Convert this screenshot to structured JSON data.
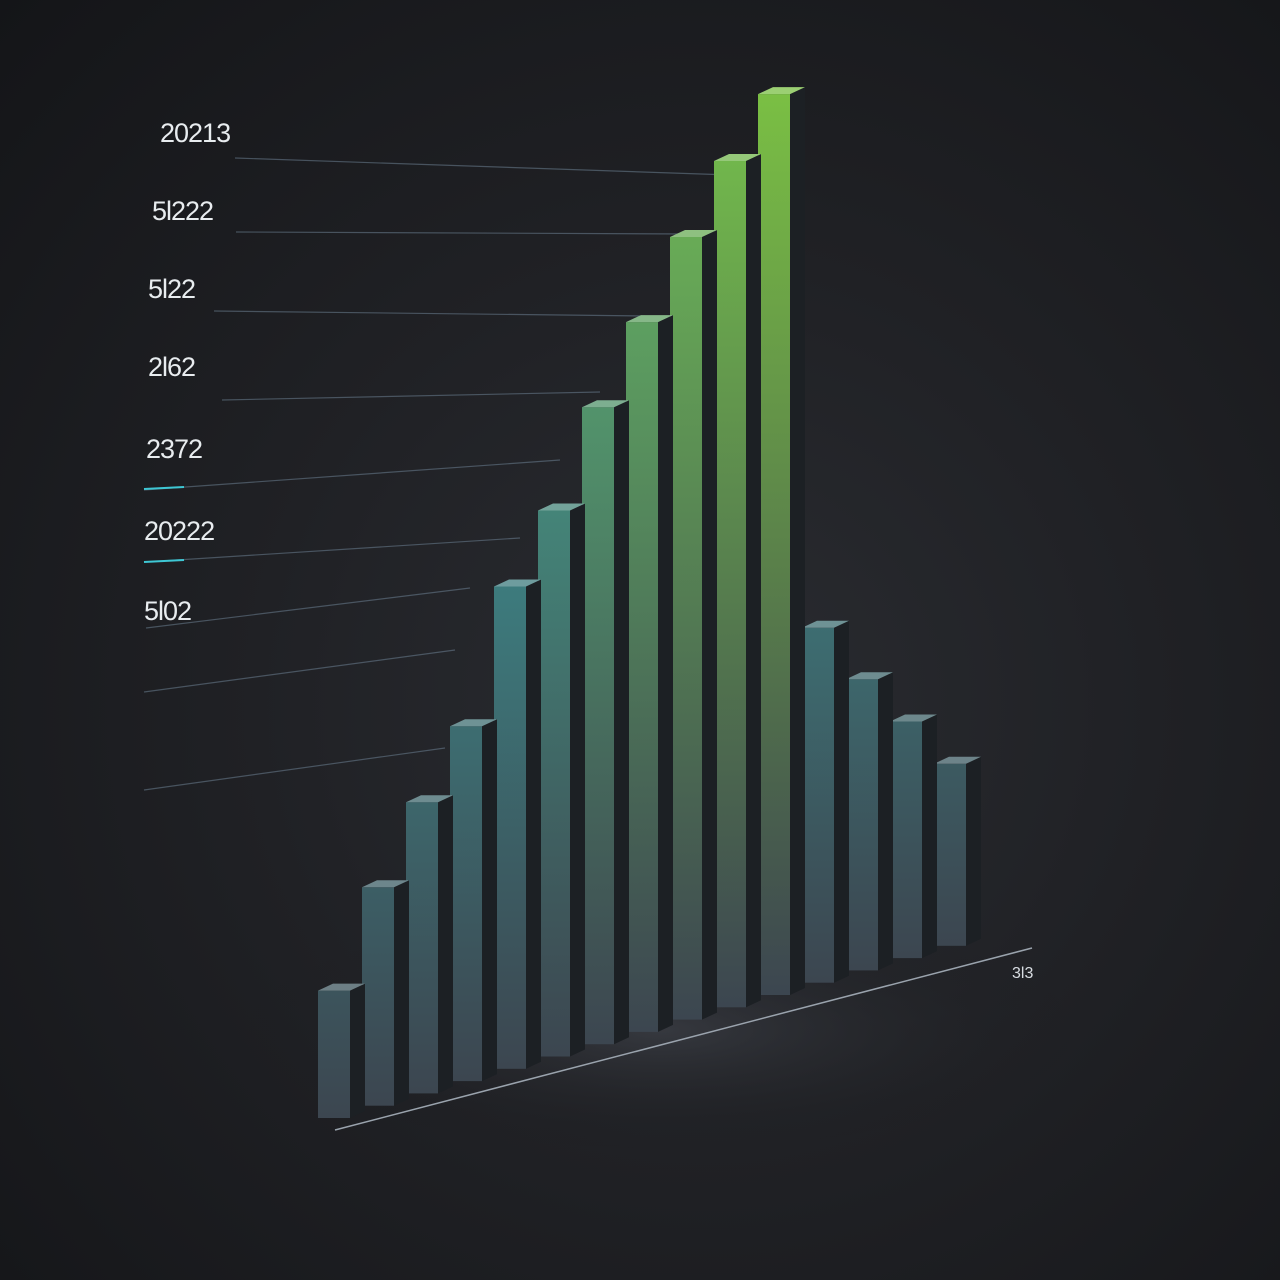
{
  "chart_data": {
    "type": "bar",
    "style": "3d",
    "y_tick_labels": [
      "20213",
      "5l222",
      "5l22",
      "2l62",
      "2372",
      "20222",
      "5l02"
    ],
    "x_end_label": "3l3",
    "values": [
      1.4,
      2.4,
      3.2,
      3.9,
      5.3,
      6.0,
      7.0,
      7.8,
      8.6,
      9.3,
      9.9,
      3.9,
      3.2,
      2.6,
      2.0
    ],
    "ylim": [
      0,
      10
    ],
    "grid": false,
    "legend": "none",
    "colors": {
      "background": "#1a1b1e",
      "low": "#3c4650",
      "mid": "#3d7d7f",
      "high": "#7bc043",
      "accent_line": "#3ec7d4"
    }
  }
}
